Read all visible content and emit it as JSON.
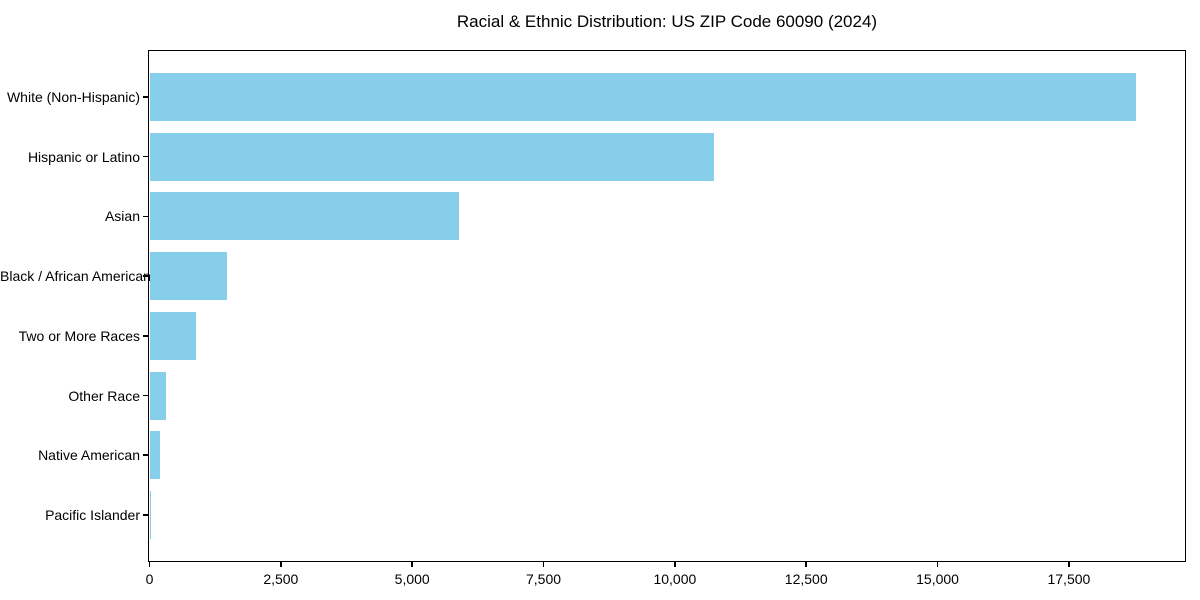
{
  "chart_data": {
    "type": "bar",
    "orientation": "horizontal",
    "title": "Racial & Ethnic Distribution: US ZIP Code 60090 (2024)",
    "categories": [
      "White (Non-Hispanic)",
      "Hispanic or Latino",
      "Asian",
      "Black / African American",
      "Two or More Races",
      "Other Race",
      "Native American",
      "Pacific Islander"
    ],
    "values": [
      18770,
      10750,
      5900,
      1475,
      890,
      315,
      200,
      10
    ],
    "xlabel": "",
    "ylabel": "",
    "xlim": [
      0,
      19700
    ],
    "xticks": [
      0,
      2500,
      5000,
      7500,
      10000,
      12500,
      15000,
      17500
    ],
    "xtick_labels": [
      "0",
      "2,500",
      "5,000",
      "7,500",
      "10,000",
      "12,500",
      "15,000",
      "17,500"
    ],
    "bar_color": "#87CEEB",
    "grid": false,
    "legend": false
  }
}
